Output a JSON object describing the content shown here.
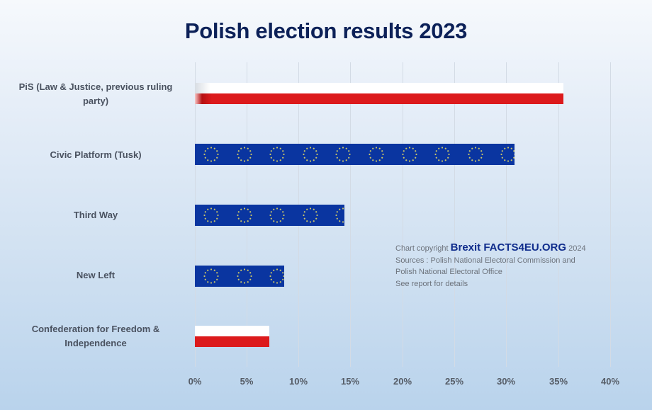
{
  "title": "Polish election results 2023",
  "chart_data": {
    "type": "bar",
    "orientation": "horizontal",
    "title": "Polish election results 2023",
    "categories": [
      "PiS (Law & Justice, previous ruling party)",
      "Civic Platform (Tusk)",
      "Third Way",
      "New Left",
      "Confederation for Freedom & Independence"
    ],
    "values": [
      35.4,
      30.7,
      14.4,
      8.6,
      7.2
    ],
    "bar_styles": [
      "polish-flag",
      "eu-flag",
      "eu-flag",
      "eu-flag",
      "polish-flag"
    ],
    "xlabel": "",
    "ylabel": "",
    "xlim": [
      0,
      40
    ],
    "x_ticks": [
      "0%",
      "5%",
      "10%",
      "15%",
      "20%",
      "25%",
      "30%",
      "35%",
      "40%"
    ],
    "grid": true,
    "legend": null
  },
  "labels": {
    "pis_line1": "PiS (Law & Justice, previous ruling",
    "pis_line2": "party)",
    "civic": "Civic Platform (Tusk)",
    "third_way": "Third Way",
    "new_left": "New Left",
    "conf_line1": "Confederation for Freedom &",
    "conf_line2": "Independence"
  },
  "ticks": [
    "0%",
    "5%",
    "10%",
    "15%",
    "20%",
    "25%",
    "30%",
    "35%",
    "40%"
  ],
  "note": {
    "prefix": "Chart copyright ",
    "brand": "Brexit FACTS4EU.ORG",
    "year": " 2024",
    "line2": "Sources : Polish National Electoral Commission and",
    "line3": "Polish National Electoral Office",
    "line4": "See report for details"
  },
  "colors": {
    "title": "#0c2158",
    "poland_white": "#ffffff",
    "poland_red": "#dc1a1c",
    "eu_blue": "#0a35a0",
    "eu_star": "#c9c46a",
    "brand": "#0f2c8c"
  }
}
